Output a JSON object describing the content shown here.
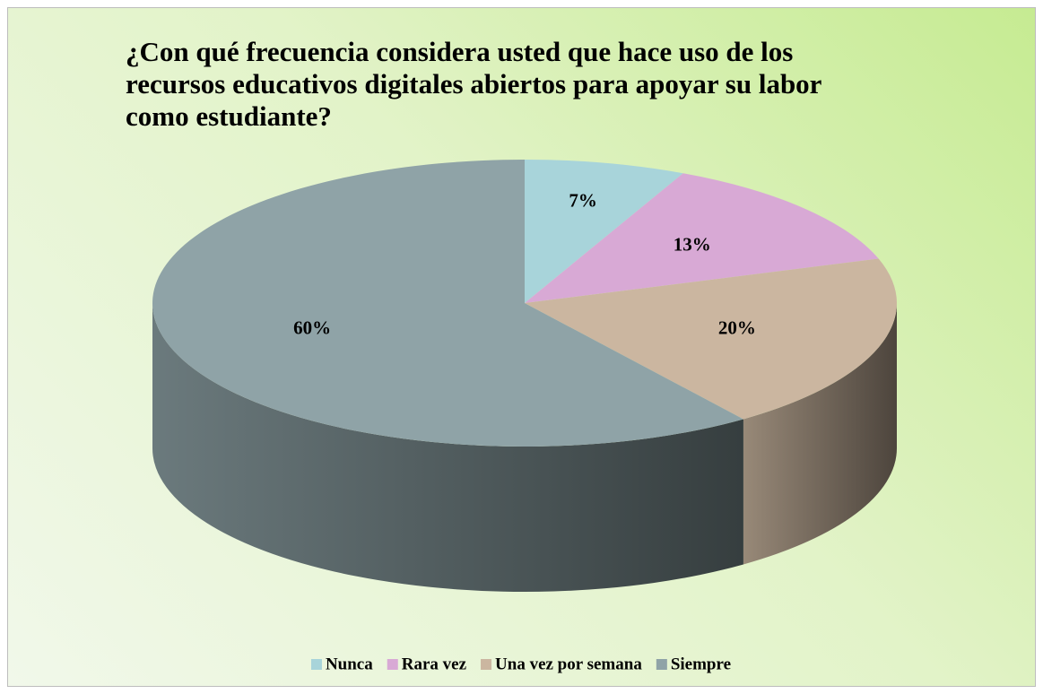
{
  "chart_data": {
    "type": "pie",
    "title": "¿Con qué frecuencia considera usted que hace uso de los recursos educativos digitales abiertos para apoyar su labor como estudiante?",
    "categories": [
      "Nunca",
      "Rara vez",
      "Una vez por semana",
      "Siempre"
    ],
    "values": [
      7,
      13,
      20,
      60
    ],
    "value_labels": [
      "7%",
      "13%",
      "20%",
      "60%"
    ],
    "colors": [
      "#a8d4da",
      "#d8a9d5",
      "#cbb6a0",
      "#8fa3a7"
    ],
    "legend": "bottom"
  }
}
